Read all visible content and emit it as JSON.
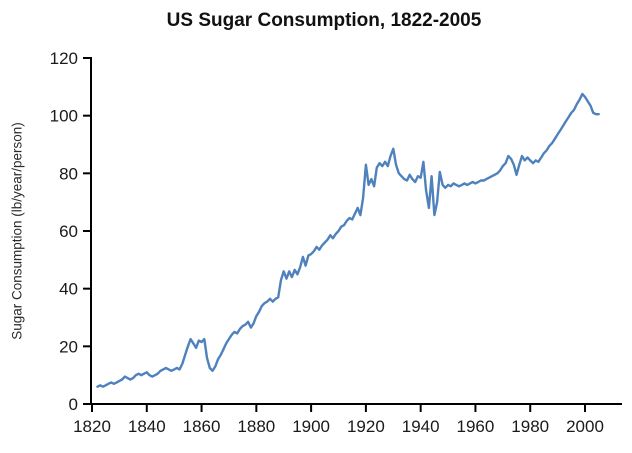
{
  "chart_data": {
    "type": "line",
    "title": "US Sugar Consumption, 1822-2005",
    "xlabel": "",
    "ylabel": "Sugar Consumption (lb/year/person)",
    "legend": "none",
    "grid": false,
    "line_color": "#4F81BD",
    "axis_color": "#000000",
    "tick_label_color": "#1a1a1a",
    "xlim": [
      1820,
      2012
    ],
    "ylim": [
      0,
      120
    ],
    "xticks": [
      1820,
      1840,
      1860,
      1880,
      1900,
      1920,
      1940,
      1960,
      1980,
      2000
    ],
    "yticks": [
      0,
      20,
      40,
      60,
      80,
      100,
      120
    ],
    "year_start": 1822,
    "year_end": 2005,
    "values": [
      6,
      6.5,
      6,
      6.5,
      7,
      7.5,
      7,
      7.5,
      8,
      8.5,
      9.5,
      9,
      8.5,
      9,
      10,
      10.5,
      10,
      10.5,
      11,
      10,
      9.5,
      10,
      10.5,
      11.5,
      12,
      12.5,
      12,
      11.5,
      12,
      12.5,
      12,
      14,
      17,
      20,
      22.5,
      21,
      19.5,
      22,
      21.5,
      22.5,
      16,
      12.5,
      11.5,
      13,
      15.5,
      17,
      19,
      21,
      22.5,
      24,
      25,
      24.5,
      26,
      27,
      27.5,
      28.5,
      26.5,
      28,
      30.5,
      32,
      34,
      35,
      35.5,
      36.5,
      35.5,
      36.5,
      37,
      43,
      46,
      43.5,
      46,
      44,
      46.5,
      45,
      47.5,
      51,
      48,
      51.5,
      52,
      53,
      54.5,
      53.5,
      55,
      56,
      57,
      58.5,
      57.5,
      59,
      60,
      61.5,
      62,
      63.5,
      64.5,
      64,
      66,
      68,
      65.5,
      71.5,
      83,
      76,
      78,
      75.5,
      82,
      83.5,
      82.5,
      84,
      82.5,
      86,
      88.5,
      83,
      80,
      79,
      78,
      77.5,
      79.5,
      78,
      77,
      79,
      78.5,
      84,
      74,
      68,
      79,
      65.5,
      70,
      80.5,
      76,
      75,
      76,
      75.5,
      76.5,
      76,
      75.5,
      76,
      76.5,
      76,
      76.5,
      77,
      76.5,
      77,
      77.5,
      77.5,
      78,
      78.5,
      79,
      79.5,
      80,
      81,
      82.5,
      83.5,
      86,
      85,
      83,
      79.5,
      83,
      86,
      84.5,
      85.5,
      84.5,
      83.5,
      84.5,
      84,
      85.5,
      87,
      88,
      89.5,
      90.5,
      92,
      93.5,
      95,
      96.5,
      98,
      99.5,
      101,
      102,
      104,
      105.5,
      107.5,
      106.5,
      105,
      103.5,
      101,
      100.5,
      100.5
    ]
  }
}
